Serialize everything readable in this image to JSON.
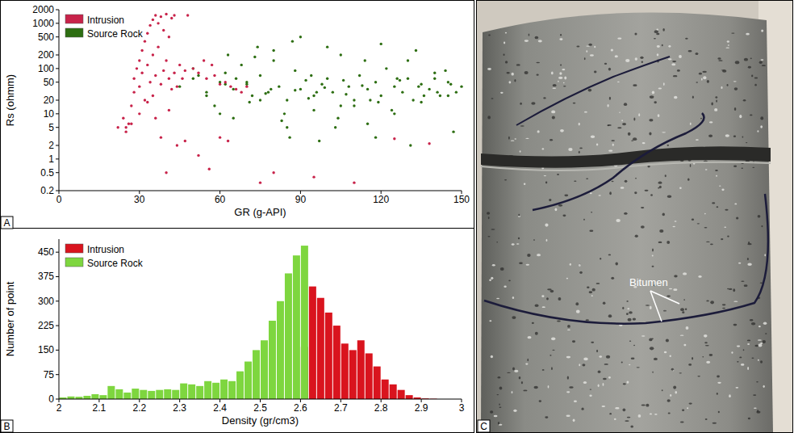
{
  "chart_data": [
    {
      "type": "scatter",
      "panel_label": "A",
      "x_label": "GR (g-API)",
      "y_label": "Rs (ohmm)",
      "log": "y",
      "legend": "upper left",
      "grid": false,
      "xlim": [
        0,
        150
      ],
      "xticks": [
        0,
        30,
        60,
        90,
        120,
        150
      ],
      "ylim": [
        0.2,
        2000
      ],
      "yticks": [
        0.2,
        0.5,
        1,
        2,
        5,
        10,
        20,
        50,
        100,
        200,
        500,
        1000,
        2000
      ],
      "series": [
        {
          "name": "Intrusion",
          "color": "#c8234a",
          "x": [
            22,
            24,
            25,
            26,
            27,
            28,
            28,
            29,
            30,
            30,
            31,
            31,
            32,
            32,
            33,
            33,
            34,
            34,
            35,
            35,
            36,
            36,
            37,
            37,
            38,
            38,
            39,
            39,
            40,
            40,
            41,
            41,
            42,
            42,
            43,
            43,
            44,
            45,
            46,
            47,
            48,
            50,
            52,
            54,
            55,
            57,
            58,
            60,
            62,
            64,
            66,
            68,
            70,
            35,
            38,
            41,
            44,
            30,
            27,
            25,
            33,
            36,
            40,
            47,
            52,
            56,
            60,
            63,
            80,
            95,
            110,
            125,
            138,
            75
          ],
          "values": [
            5,
            8,
            4,
            6,
            15,
            30,
            60,
            100,
            40,
            150,
            80,
            250,
            20,
            400,
            120,
            600,
            50,
            900,
            200,
            1200,
            70,
            1500,
            300,
            1000,
            45,
            1400,
            90,
            700,
            150,
            1600,
            60,
            500,
            35,
            1300,
            80,
            1500,
            40,
            120,
            60,
            90,
            1500,
            100,
            80,
            150,
            60,
            120,
            70,
            45,
            50,
            40,
            35,
            30,
            40,
            25,
            3,
            12,
            2,
            10,
            6,
            5,
            18,
            8,
            0.5,
            2.5,
            1.2,
            0.6,
            3,
            2.5,
            0.5,
            0.4,
            0.3,
            2.8,
            2.2,
            0.3
          ]
        },
        {
          "name": "Source Rock",
          "color": "#2d6e12",
          "x": [
            45,
            50,
            55,
            60,
            62,
            65,
            68,
            70,
            72,
            75,
            78,
            80,
            82,
            85,
            88,
            90,
            92,
            95,
            98,
            100,
            102,
            105,
            108,
            110,
            112,
            115,
            118,
            120,
            122,
            125,
            128,
            130,
            132,
            135,
            138,
            140,
            142,
            145,
            148,
            50,
            58,
            66,
            74,
            84,
            94,
            104,
            114,
            124,
            134,
            144,
            55,
            63,
            71,
            79,
            87,
            96,
            106,
            116,
            126,
            136,
            146,
            60,
            70,
            80,
            90,
            100,
            110,
            120,
            130,
            140,
            150,
            65,
            75,
            85,
            95,
            105,
            115,
            125,
            135,
            145,
            52,
            62,
            77,
            88,
            93,
            99,
            107,
            113,
            119,
            127,
            133,
            141,
            86,
            97,
            103,
            118,
            131,
            147,
            73,
            83
          ],
          "values": [
            40,
            60,
            30,
            50,
            80,
            35,
            120,
            45,
            25,
            70,
            30,
            150,
            40,
            20,
            90,
            35,
            55,
            25,
            45,
            60,
            30,
            200,
            40,
            15,
            70,
            35,
            50,
            25,
            100,
            40,
            30,
            60,
            20,
            45,
            35,
            80,
            25,
            50,
            30,
            100,
            15,
            60,
            300,
            10,
            70,
            8,
            150,
            12,
            40,
            90,
            25,
            200,
            18,
            35,
            400,
            30,
            55,
            20,
            60,
            25,
            45,
            10,
            50,
            250,
            500,
            300,
            20,
            350,
            150,
            60,
            40,
            8,
            20,
            5,
            12,
            15,
            6,
            10,
            18,
            25,
            70,
            45,
            28,
            33,
            22,
            38,
            27,
            42,
            18,
            55,
            250,
            30,
            3,
            2.5,
            5,
            3,
            2,
            4,
            180,
            7
          ]
        }
      ]
    },
    {
      "type": "histogram",
      "panel_label": "B",
      "x_label": "Density (gr/cm3)",
      "y_label": "Number of point",
      "legend": "upper left",
      "grid": false,
      "xlim": [
        2,
        3
      ],
      "xticks": [
        2,
        2.1,
        2.2,
        2.3,
        2.4,
        2.5,
        2.6,
        2.7,
        2.8,
        2.9,
        3
      ],
      "ylim": [
        0,
        490
      ],
      "yticks": [
        0,
        75,
        150,
        225,
        300,
        375,
        450
      ],
      "bins": [
        2,
        2.02,
        2.04,
        2.06,
        2.08,
        2.1,
        2.12,
        2.14,
        2.16,
        2.18,
        2.2,
        2.22,
        2.24,
        2.26,
        2.28,
        2.3,
        2.32,
        2.34,
        2.36,
        2.38,
        2.4,
        2.42,
        2.44,
        2.46,
        2.48,
        2.5,
        2.52,
        2.54,
        2.56,
        2.58,
        2.6,
        2.62,
        2.64,
        2.66,
        2.68,
        2.7,
        2.72,
        2.74,
        2.76,
        2.78,
        2.8,
        2.82,
        2.84,
        2.86,
        2.88,
        2.9,
        2.92,
        2.94,
        2.96,
        2.98,
        3
      ],
      "series": [
        {
          "name": "Intrusion",
          "color": "#d9141e",
          "values": [
            0,
            0,
            0,
            0,
            0,
            0,
            0,
            0,
            0,
            0,
            0,
            0,
            0,
            0,
            0,
            0,
            0,
            0,
            0,
            0,
            0,
            0,
            0,
            0,
            0,
            0,
            0,
            0,
            0,
            0,
            160,
            345,
            310,
            265,
            225,
            170,
            150,
            180,
            140,
            100,
            60,
            45,
            28,
            12,
            5,
            2,
            1,
            0,
            0,
            0
          ]
        },
        {
          "name": "Source Rock",
          "color": "#7ed63f",
          "values": [
            5,
            8,
            7,
            10,
            15,
            12,
            40,
            30,
            20,
            32,
            28,
            25,
            28,
            30,
            28,
            48,
            45,
            40,
            55,
            50,
            60,
            55,
            85,
            115,
            150,
            180,
            240,
            300,
            385,
            440,
            470,
            0,
            0,
            0,
            0,
            0,
            0,
            0,
            0,
            0,
            0,
            0,
            0,
            0,
            0,
            0,
            0,
            0,
            0,
            0
          ]
        }
      ]
    }
  ],
  "photo": {
    "panel_label": "C",
    "annotation": "Bitumen"
  }
}
